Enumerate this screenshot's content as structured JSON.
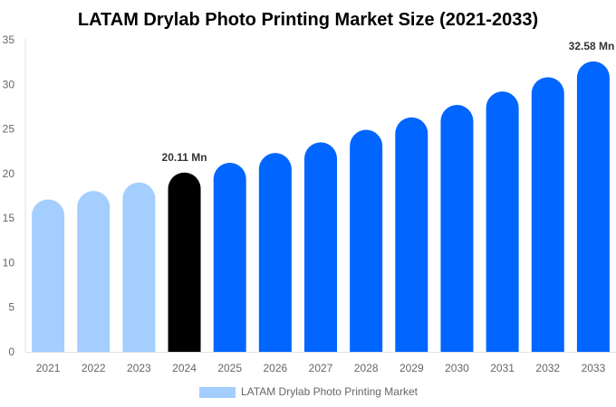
{
  "chart_data": {
    "type": "bar",
    "title": "LATAM Drylab Photo Printing Market Size (2021-2033)",
    "xlabel": "",
    "ylabel": "",
    "categories": [
      "2021",
      "2022",
      "2023",
      "2024",
      "2025",
      "2026",
      "2027",
      "2028",
      "2029",
      "2030",
      "2031",
      "2032",
      "2033"
    ],
    "series": [
      {
        "name": "LATAM Drylab Photo Printing Market",
        "values": [
          17.1,
          18.05,
          19.0,
          20.11,
          21.2,
          22.3,
          23.5,
          24.9,
          26.3,
          27.7,
          29.2,
          30.8,
          32.58
        ]
      }
    ],
    "ylim": [
      0,
      35
    ],
    "yticks": [
      "0",
      "5",
      "10",
      "15",
      "20",
      "25",
      "30",
      "35"
    ],
    "data_labels": [
      {
        "category": "2024",
        "text": "20.11 Mn"
      },
      {
        "category": "2033",
        "text": "32.58 Mn"
      }
    ],
    "bar_colors": {
      "historical": "#a3cefe",
      "base_year": "#000000",
      "forecast": "#0066ff"
    },
    "bar_color_groups": [
      "historical",
      "historical",
      "historical",
      "base_year",
      "forecast",
      "forecast",
      "forecast",
      "forecast",
      "forecast",
      "forecast",
      "forecast",
      "forecast",
      "forecast"
    ],
    "legend_color": "#a3cefe",
    "legend_position": "bottom",
    "grid": false
  }
}
